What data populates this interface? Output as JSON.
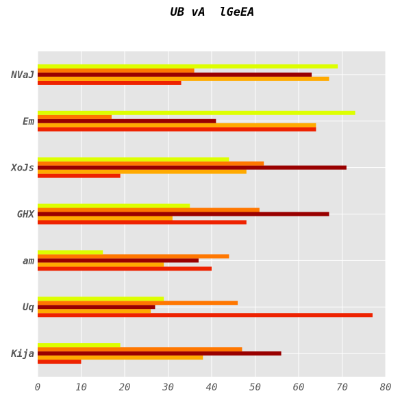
{
  "chart_data": {
    "type": "bar",
    "orientation": "horizontal",
    "title": "UB vA  lGeEA",
    "categories": [
      "Kija",
      "Uq",
      "am",
      "GHX",
      "XoJs",
      "Em",
      "NVaJ"
    ],
    "xlim": [
      0,
      80
    ],
    "xticks": [
      0,
      10,
      20,
      30,
      40,
      50,
      60,
      70,
      80
    ],
    "grid": true,
    "series": [
      {
        "color": "#ee2200",
        "values": [
          10,
          77,
          40,
          48,
          19,
          64,
          33
        ]
      },
      {
        "color": "#ffaa00",
        "values": [
          38,
          26,
          29,
          31,
          48,
          64,
          67
        ]
      },
      {
        "color": "#990000",
        "values": [
          56,
          27,
          37,
          67,
          71,
          41,
          63
        ]
      },
      {
        "color": "#ff7700",
        "values": [
          47,
          46,
          44,
          51,
          52,
          17,
          36
        ]
      },
      {
        "color": "#ddff00",
        "values": [
          19,
          29,
          15,
          35,
          44,
          73,
          69
        ]
      }
    ]
  }
}
